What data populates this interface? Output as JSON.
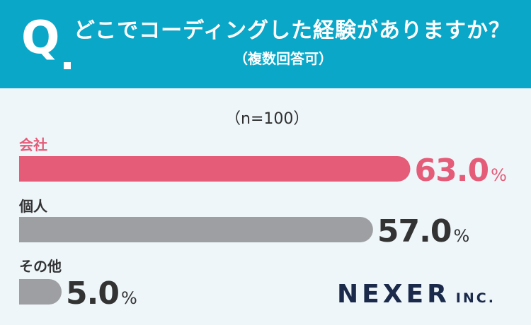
{
  "header": {
    "q_mark": "Q",
    "question": "どこでコーディングした経験がありますか？",
    "subnote": "（複数回答可）"
  },
  "sample": "（n=100）",
  "brand": {
    "name": "NEXER",
    "suffix": "INC."
  },
  "colors": {
    "header_bg": "#0aa7c8",
    "highlight": "#e55c78",
    "bar_gray": "#9e9fa3",
    "value_text": "#333333",
    "label_text": "#333333",
    "background": "#eef6fa"
  },
  "chart_data": {
    "type": "bar",
    "orientation": "horizontal",
    "unit": "%",
    "categories": [
      "会社",
      "個人",
      "その他"
    ],
    "values": [
      63.0,
      57.0,
      5.0
    ],
    "xlim": [
      0,
      100
    ],
    "highlight_index": 0,
    "grid": false,
    "legend": "none"
  }
}
